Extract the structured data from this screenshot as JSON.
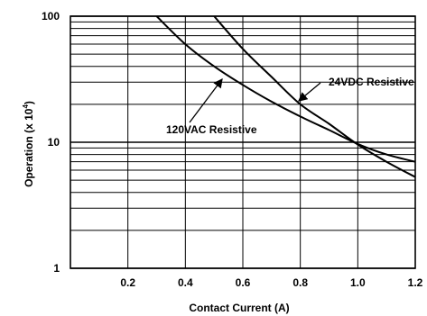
{
  "chart_data": {
    "type": "line",
    "xlabel": "Contact Current (A)",
    "ylabel_main": "Operation (x 10",
    "ylabel_exp": "4",
    "ylabel_close": ")",
    "yscale": "log",
    "xlim": [
      0.0,
      1.2
    ],
    "ylim": [
      1,
      100
    ],
    "grid": true,
    "x_ticks": [
      0.2,
      0.4,
      0.6,
      0.8,
      1.0,
      1.2
    ],
    "x_tick_labels": [
      "0.2",
      "0.4",
      "0.6",
      "0.8",
      "1.0",
      "1.2"
    ],
    "y_ticks": [
      1,
      10,
      100
    ],
    "y_tick_labels": [
      "1",
      "10",
      "100"
    ],
    "x_gridlines": [
      0.2,
      0.4,
      0.6,
      0.8,
      1.0,
      1.2
    ],
    "y_gridlines": [
      1,
      2,
      3,
      4,
      5,
      6,
      7,
      8,
      9,
      10,
      20,
      30,
      40,
      50,
      60,
      70,
      80,
      90,
      100
    ],
    "series": [
      {
        "name": "24VDC Resistive",
        "x": [
          0.5,
          0.6,
          0.7,
          0.8,
          0.9,
          1.0,
          1.1,
          1.2
        ],
        "y": [
          100,
          55,
          33,
          20,
          14,
          9.6,
          7.0,
          5.3
        ]
      },
      {
        "name": "120VAC Resistive",
        "x": [
          0.3,
          0.4,
          0.5,
          0.6,
          0.7,
          0.8,
          0.9,
          1.0,
          1.1,
          1.2
        ],
        "y": [
          100,
          60,
          40,
          28.5,
          21,
          16,
          12.5,
          9.7,
          8.0,
          7.0
        ]
      }
    ],
    "annotations": [
      {
        "text": "24VDC Resistive",
        "series": "24VDC Resistive"
      },
      {
        "text": "120VAC Resistive",
        "series": "120VAC Resistive"
      }
    ]
  }
}
